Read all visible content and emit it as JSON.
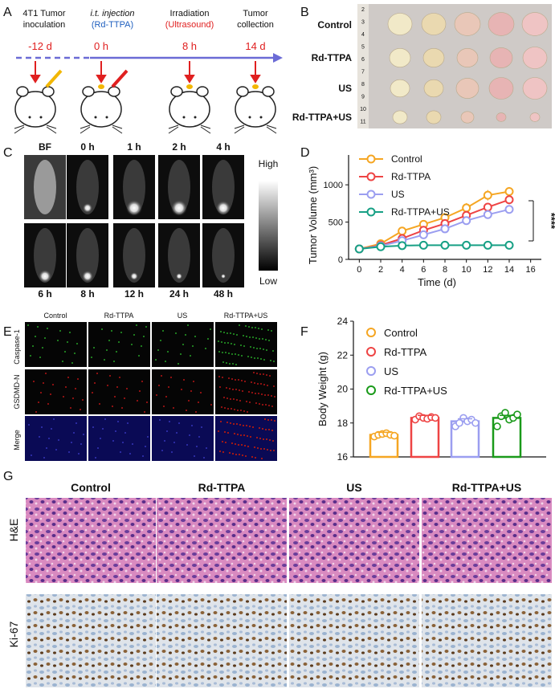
{
  "panel_letters": [
    "A",
    "B",
    "C",
    "D",
    "E",
    "F",
    "G"
  ],
  "panelA": {
    "steps": [
      {
        "line1": "4T1 Tumor",
        "line2": "inoculation",
        "time": "-12 d"
      },
      {
        "line1": "i.t. injection",
        "line2": "(Rd-TTPA)",
        "time": "0 h"
      },
      {
        "line1": "Irradiation",
        "line2": "(Ultrasound)",
        "time": "8 h"
      },
      {
        "line1": "Tumor",
        "line2": "collection",
        "time": "14 d"
      }
    ],
    "colors": {
      "time": "#e02020",
      "drug": "#1f5fbf",
      "us": "#e02020",
      "axis": "#6b6bd6"
    }
  },
  "panelB": {
    "rows": [
      "Control",
      "Rd-TTPA",
      "US",
      "Rd-TTPA+US"
    ],
    "ruler_numbers": [
      "2",
      "3",
      "4",
      "5",
      "6",
      "7",
      "8",
      "9",
      "10",
      "11"
    ]
  },
  "panelC": {
    "top_labels": [
      "BF",
      "0 h",
      "1 h",
      "2 h",
      "4 h"
    ],
    "bottom_labels": [
      "6 h",
      "8 h",
      "12 h",
      "24 h",
      "48 h"
    ],
    "scale_high": "High",
    "scale_low": "Low"
  },
  "panelE": {
    "columns": [
      "Control",
      "Rd-TTPA",
      "US",
      "Rd-TTPA+US"
    ],
    "rows": [
      "Caspase-1",
      "GSDMD-N",
      "Merge"
    ]
  },
  "panelG": {
    "columns": [
      "Control",
      "Rd-TTPA",
      "US",
      "Rd-TTPA+US"
    ],
    "rows": [
      "H&E",
      "Ki-67"
    ]
  },
  "chart_data": [
    {
      "type": "line",
      "panel": "D",
      "xlabel": "Time (d)",
      "ylabel": "Tumor Volume (mm³)",
      "xlim": [
        -1,
        17
      ],
      "ylim": [
        0,
        1400
      ],
      "xticks": [
        0,
        2,
        4,
        6,
        8,
        10,
        12,
        14,
        16
      ],
      "yticks": [
        0,
        500,
        1000
      ],
      "x": [
        0,
        2,
        4,
        6,
        8,
        10,
        12,
        14
      ],
      "series": [
        {
          "name": "Control",
          "color": "#f5a623",
          "values": [
            140,
            210,
            380,
            470,
            560,
            690,
            860,
            910
          ],
          "errors": [
            20,
            25,
            50,
            55,
            60,
            65,
            70,
            60
          ]
        },
        {
          "name": "Rd-TTPA",
          "color": "#ee4444",
          "values": [
            140,
            190,
            280,
            390,
            480,
            590,
            700,
            800
          ],
          "errors": [
            15,
            20,
            30,
            40,
            50,
            50,
            55,
            60
          ]
        },
        {
          "name": "US",
          "color": "#9b9ef0",
          "values": [
            140,
            180,
            250,
            330,
            410,
            520,
            600,
            670
          ],
          "errors": [
            15,
            15,
            25,
            35,
            40,
            45,
            40,
            45
          ]
        },
        {
          "name": "Rd-TTPA+US",
          "color": "#17a085",
          "values": [
            140,
            170,
            185,
            190,
            190,
            190,
            190,
            190
          ],
          "errors": [
            10,
            10,
            10,
            10,
            10,
            10,
            10,
            10
          ]
        }
      ],
      "annotation": "****"
    },
    {
      "type": "bar",
      "panel": "F",
      "ylabel": "Body Weight (g)",
      "ylim": [
        16,
        24
      ],
      "yticks": [
        16,
        18,
        20,
        22,
        24
      ],
      "categories": [
        "Control",
        "Rd-TTPA",
        "US",
        "Rd-TTPA+US"
      ],
      "colors": [
        "#f5a623",
        "#ee4444",
        "#9b9ef0",
        "#1a9a1a"
      ],
      "values": [
        17.3,
        18.3,
        18.1,
        18.3
      ],
      "points": [
        [
          17.2,
          17.3,
          17.35,
          17.4,
          17.3,
          17.25
        ],
        [
          18.2,
          18.4,
          18.3,
          18.25,
          18.35,
          18.3
        ],
        [
          17.8,
          18.0,
          18.3,
          18.1,
          18.2,
          18.0
        ],
        [
          17.8,
          18.4,
          18.6,
          18.2,
          18.3,
          18.5
        ]
      ]
    }
  ]
}
